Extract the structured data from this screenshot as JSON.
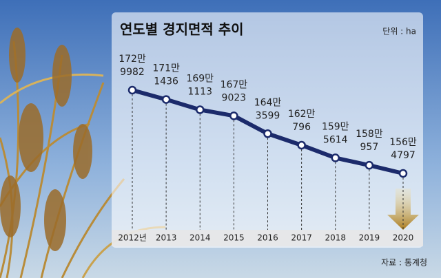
{
  "chart_data": {
    "type": "line",
    "title": "연도별 경지면적 추이",
    "unit": "단위 : ha",
    "source": "자료 : 통계청",
    "categories": [
      "2012년",
      "2013",
      "2014",
      "2015",
      "2016",
      "2017",
      "2018",
      "2019",
      "2020"
    ],
    "values": [
      1729982,
      1711436,
      1691113,
      1679023,
      1643599,
      1620796,
      1595614,
      1580957,
      1564797
    ],
    "value_labels": [
      [
        "172만",
        "9982"
      ],
      [
        "171만",
        "1436"
      ],
      [
        "169만",
        "1113"
      ],
      [
        "167만",
        "9023"
      ],
      [
        "164만",
        "3599"
      ],
      [
        "162만",
        "796"
      ],
      [
        "159만",
        "5614"
      ],
      [
        "158만",
        "957"
      ],
      [
        "156만",
        "4797"
      ]
    ],
    "color": "#1b2a6b"
  }
}
